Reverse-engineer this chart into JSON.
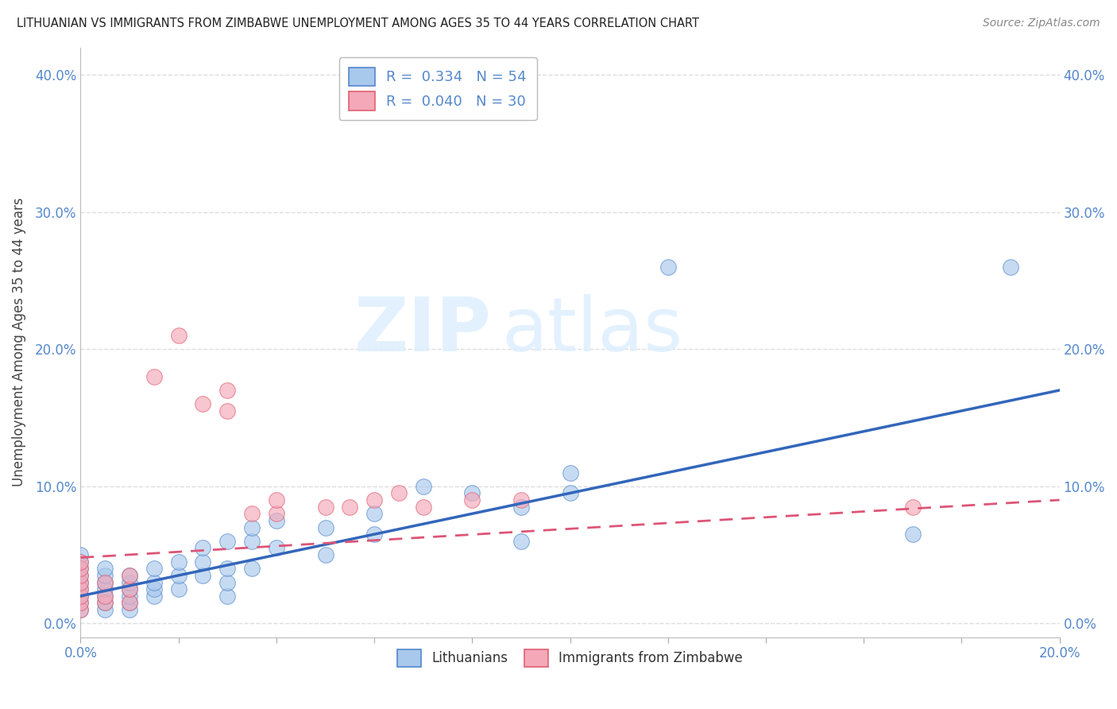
{
  "title": "LITHUANIAN VS IMMIGRANTS FROM ZIMBABWE UNEMPLOYMENT AMONG AGES 35 TO 44 YEARS CORRELATION CHART",
  "source": "Source: ZipAtlas.com",
  "ylabel": "Unemployment Among Ages 35 to 44 years",
  "xlim": [
    0.0,
    0.2
  ],
  "ylim": [
    -0.01,
    0.42
  ],
  "blue_R": "0.334",
  "blue_N": "54",
  "pink_R": "0.040",
  "pink_N": "30",
  "legend_label1": "Lithuanians",
  "legend_label2": "Immigrants from Zimbabwe",
  "blue_color": "#A8C8EC",
  "pink_color": "#F4A8B8",
  "blue_edge_color": "#5588CC",
  "pink_edge_color": "#E06070",
  "blue_line_color": "#3366BB",
  "pink_line_color": "#DD5577",
  "background_color": "#FFFFFF",
  "watermark_zip": "ZIP",
  "watermark_atlas": "atlas",
  "grid_color": "#DDDDDD",
  "tick_color": "#5588CC",
  "title_color": "#222222",
  "source_color": "#888888",
  "ylabel_color": "#444444",
  "blue_scatter_x": [
    0.0,
    0.0,
    0.0,
    0.0,
    0.0,
    0.0,
    0.0,
    0.0,
    0.0,
    0.005,
    0.005,
    0.005,
    0.005,
    0.005,
    0.005,
    0.005,
    0.01,
    0.01,
    0.01,
    0.01,
    0.01,
    0.01,
    0.015,
    0.015,
    0.015,
    0.015,
    0.02,
    0.02,
    0.02,
    0.025,
    0.025,
    0.025,
    0.03,
    0.03,
    0.03,
    0.03,
    0.035,
    0.035,
    0.035,
    0.04,
    0.04,
    0.05,
    0.05,
    0.06,
    0.06,
    0.07,
    0.08,
    0.09,
    0.09,
    0.1,
    0.1,
    0.12,
    0.17,
    0.19
  ],
  "blue_scatter_y": [
    0.01,
    0.015,
    0.02,
    0.025,
    0.03,
    0.035,
    0.04,
    0.045,
    0.05,
    0.01,
    0.015,
    0.02,
    0.025,
    0.03,
    0.035,
    0.04,
    0.01,
    0.015,
    0.02,
    0.025,
    0.03,
    0.035,
    0.02,
    0.025,
    0.03,
    0.04,
    0.025,
    0.035,
    0.045,
    0.035,
    0.045,
    0.055,
    0.02,
    0.03,
    0.04,
    0.06,
    0.04,
    0.06,
    0.07,
    0.055,
    0.075,
    0.05,
    0.07,
    0.065,
    0.08,
    0.1,
    0.095,
    0.06,
    0.085,
    0.095,
    0.11,
    0.26,
    0.065,
    0.26
  ],
  "pink_scatter_x": [
    0.0,
    0.0,
    0.0,
    0.0,
    0.0,
    0.0,
    0.0,
    0.0,
    0.005,
    0.005,
    0.005,
    0.01,
    0.01,
    0.01,
    0.015,
    0.02,
    0.025,
    0.03,
    0.03,
    0.035,
    0.04,
    0.04,
    0.05,
    0.055,
    0.06,
    0.065,
    0.07,
    0.08,
    0.09,
    0.17
  ],
  "pink_scatter_y": [
    0.01,
    0.015,
    0.02,
    0.025,
    0.03,
    0.035,
    0.04,
    0.045,
    0.015,
    0.02,
    0.03,
    0.015,
    0.025,
    0.035,
    0.18,
    0.21,
    0.16,
    0.155,
    0.17,
    0.08,
    0.08,
    0.09,
    0.085,
    0.085,
    0.09,
    0.095,
    0.085,
    0.09,
    0.09,
    0.085
  ],
  "blue_line_x": [
    0.0,
    0.2
  ],
  "blue_line_y": [
    0.02,
    0.17
  ],
  "pink_line_x": [
    0.0,
    0.2
  ],
  "pink_line_y": [
    0.048,
    0.09
  ]
}
